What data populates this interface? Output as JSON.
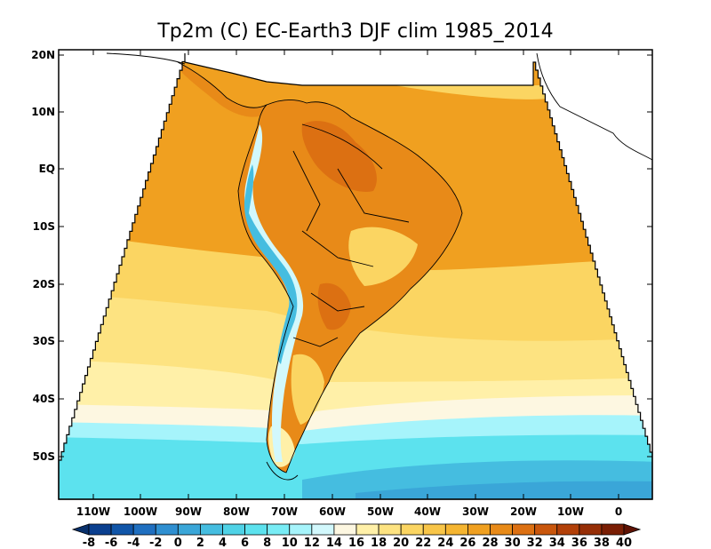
{
  "title": "Tp2m (C) EC-Earth3 DJF clim 1985_2014",
  "map": {
    "lat_ticks": [
      "20N",
      "10N",
      "EQ",
      "10S",
      "20S",
      "30S",
      "40S",
      "50S"
    ],
    "lon_ticks": [
      "110W",
      "100W",
      "90W",
      "80W",
      "70W",
      "60W",
      "50W",
      "40W",
      "30W",
      "20W",
      "10W",
      "0"
    ],
    "lon_range": [
      -118,
      6
    ],
    "lat_range": [
      -58,
      21
    ]
  },
  "colorbar": {
    "labels": [
      "-8",
      "-6",
      "-4",
      "-2",
      "0",
      "2",
      "4",
      "6",
      "8",
      "10",
      "12",
      "14",
      "16",
      "18",
      "20",
      "22",
      "24",
      "26",
      "28",
      "30",
      "32",
      "34",
      "36",
      "38",
      "40"
    ],
    "colors": [
      "#08306b",
      "#0a3f8f",
      "#1055a8",
      "#1f6fc0",
      "#2f8fd1",
      "#3aa6d8",
      "#45bde0",
      "#4fd2e6",
      "#5ce2ee",
      "#78ecf5",
      "#a6f4fb",
      "#d2f8fc",
      "#fdf7e1",
      "#fff0a8",
      "#fde381",
      "#fbd562",
      "#f8c548",
      "#f5b531",
      "#f0a020",
      "#e88a18",
      "#dc7012",
      "#c9560c",
      "#b24008",
      "#962e06",
      "#7a1e04",
      "#5e1203"
    ]
  },
  "field_colors": {
    "tropical": "#f0a020",
    "subtropical": "#fbd562",
    "mid": "#fde381",
    "cool": "#fff0a8",
    "neutral": "#fdf7e1",
    "cold1": "#a6f4fb",
    "cold2": "#5ce2ee",
    "cold3": "#45bde0",
    "cold4": "#3aa6d8",
    "warm_land": "#e88a18",
    "hot_land": "#dc7012",
    "andes_cold": "#45bde0",
    "andes_cool": "#d2f8fc"
  }
}
